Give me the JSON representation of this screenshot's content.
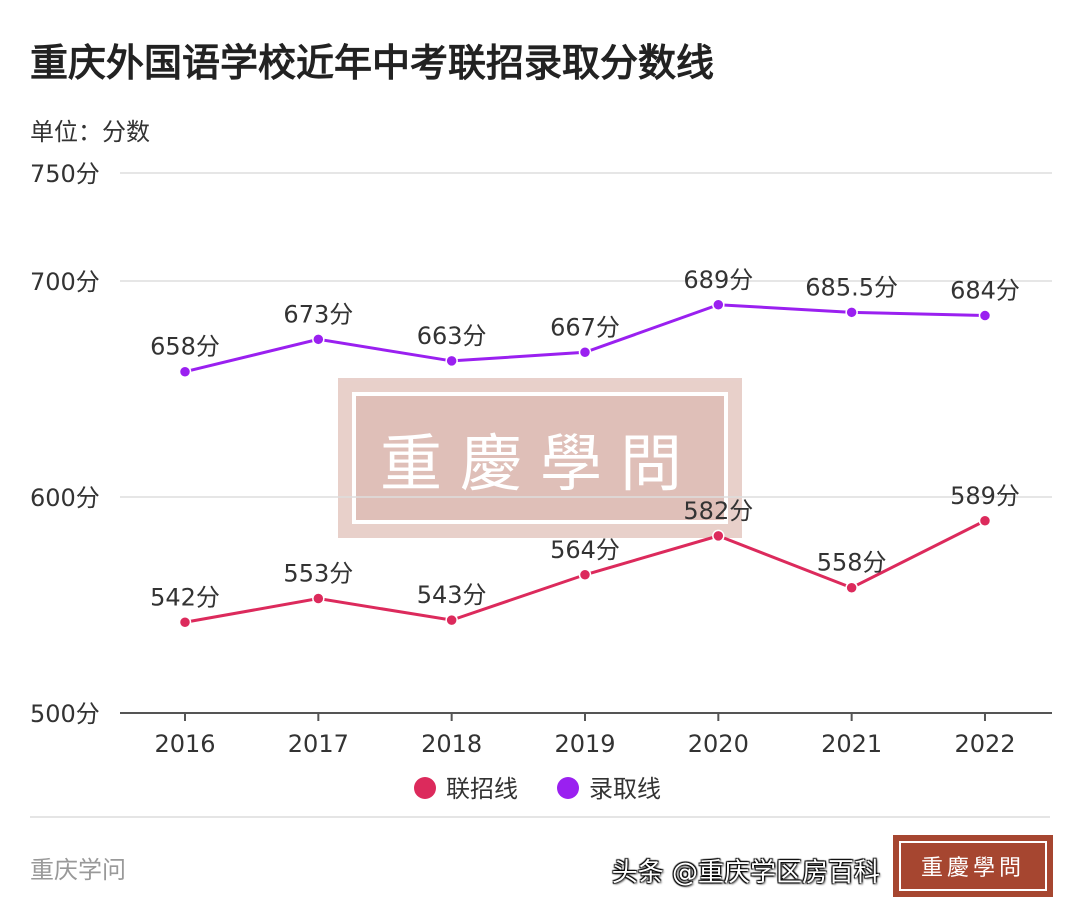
{
  "title": "重庆外国语学校近年中考联招录取分数线",
  "unit_label": "单位：分数",
  "source": "重庆学问",
  "watermark": "重慶學問",
  "credit": "头条 @重庆学区房百科",
  "chart_data": {
    "type": "line",
    "title": "重庆外国语学校近年中考联招录取分数线",
    "ylabel": "单位：分数",
    "ylim": [
      500,
      750
    ],
    "yticks": [
      500,
      600,
      700,
      750
    ],
    "ytick_labels": [
      "500分",
      "600分",
      "700分",
      "750分"
    ],
    "categories": [
      "2016",
      "2017",
      "2018",
      "2019",
      "2020",
      "2021",
      "2022"
    ],
    "grid": true,
    "legend": "bottom",
    "series": [
      {
        "name": "联招线",
        "color": "#dc2a5c",
        "values": [
          542,
          553,
          543,
          564,
          582,
          558,
          589
        ],
        "labels": [
          "542分",
          "553分",
          "543分",
          "564分",
          "582分",
          "558分",
          "589分"
        ]
      },
      {
        "name": "录取线",
        "color": "#9a20f0",
        "values": [
          658,
          673,
          663,
          667,
          689,
          685.5,
          684
        ],
        "labels": [
          "658分",
          "673分",
          "663分",
          "667分",
          "689分",
          "685.5分",
          "684分"
        ]
      }
    ]
  }
}
